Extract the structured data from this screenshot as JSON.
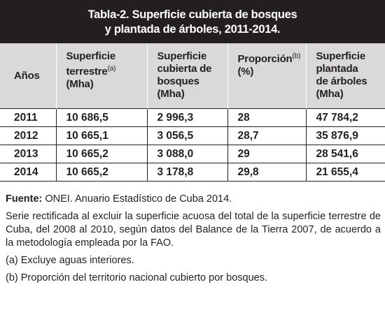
{
  "table": {
    "title": [
      "Tabla-2. Superficie cubierta de bosques",
      "y plantada de árboles, 2011-2014."
    ],
    "header": [
      {
        "lines": [
          "Años"
        ]
      },
      {
        "lines": [
          "Superficie",
          "terrestre"
        ],
        "sup": "(a)",
        "unit": "(Mha)"
      },
      {
        "lines": [
          "Superficie",
          "cubierta de",
          "bosques"
        ],
        "unit": "(Mha)"
      },
      {
        "lines": [
          "Proporción"
        ],
        "sup": "(b)",
        "unit": "(%)"
      },
      {
        "lines": [
          "Superficie",
          "plantada",
          "de árboles"
        ],
        "unit": "(Mha)"
      }
    ],
    "rows": [
      [
        "2011",
        "10 686,5",
        "2 996,3",
        "28",
        "47 784,2"
      ],
      [
        "2012",
        "10 665,1",
        "3 056,5",
        "28,7",
        "35 876,9"
      ],
      [
        "2013",
        "10 665,2",
        "3 088,0",
        "29",
        "28 541,6"
      ],
      [
        "2014",
        "10 665,2",
        "3 178,8",
        "29,8",
        "21 655,4"
      ]
    ]
  },
  "footer": {
    "source_label": "Fuente:",
    "source": "ONEI. Anuario Estadístico de Cuba 2014.",
    "note": "Serie rectificada al excluir la superficie acuosa del total de la superficie terrestre de Cuba, del 2008 al 2010, según datos del Balance de la Tierra 2007, de acuerdo a la metodología empleada por la FAO.",
    "notes": [
      "(a) Excluye aguas interiores.",
      "(b) Proporción del territorio nacional cubierto por bosques."
    ]
  }
}
